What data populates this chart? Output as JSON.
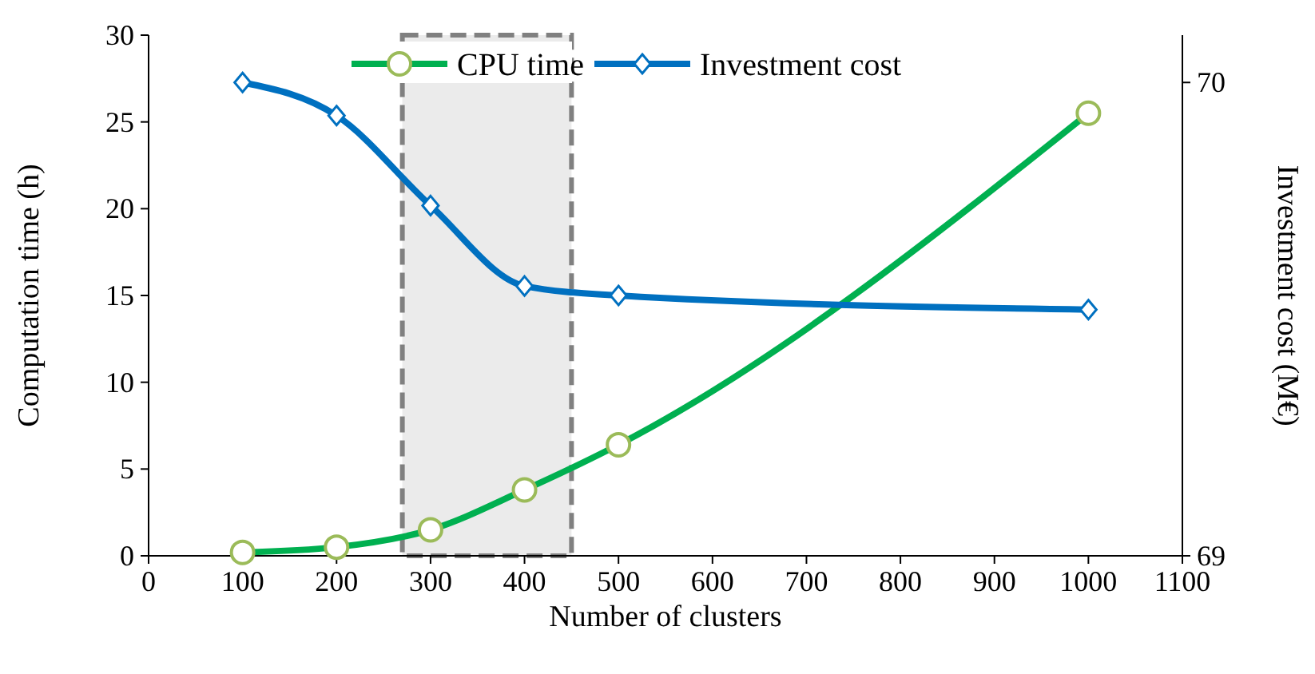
{
  "chart_data": {
    "type": "line",
    "xlabel": "Number of clusters",
    "ylabel": "Computation time (h)",
    "y2label": "Investment cost (M€)",
    "xlim": [
      0,
      1100
    ],
    "xticks": [
      0,
      100,
      200,
      300,
      400,
      500,
      600,
      700,
      800,
      900,
      1000,
      1100
    ],
    "ylim": [
      0,
      30
    ],
    "yticks": [
      0,
      5,
      10,
      15,
      20,
      25,
      30
    ],
    "y2lim": [
      69,
      70.1
    ],
    "y2ticks": [
      69,
      70
    ],
    "legend": "top",
    "grid": false,
    "line_style": "solid",
    "bands": [
      {
        "axis": "x",
        "from": 270,
        "to": 450,
        "color": "#ebebeb"
      }
    ],
    "series": [
      {
        "name": "CPU time",
        "color": "#00b050",
        "marker": "circle",
        "x": [
          100,
          200,
          300,
          400,
          500,
          1000
        ],
        "values": [
          0.2,
          0.5,
          1.5,
          3.8,
          6.4,
          25.5
        ]
      },
      {
        "name": "Investment cost",
        "color": "#0070c0",
        "marker": "diamond",
        "axis": "y2",
        "x": [
          100,
          200,
          300,
          400,
          500,
          1000
        ],
        "values": [
          70.0,
          69.93,
          69.74,
          69.57,
          69.55,
          69.52
        ]
      }
    ]
  }
}
